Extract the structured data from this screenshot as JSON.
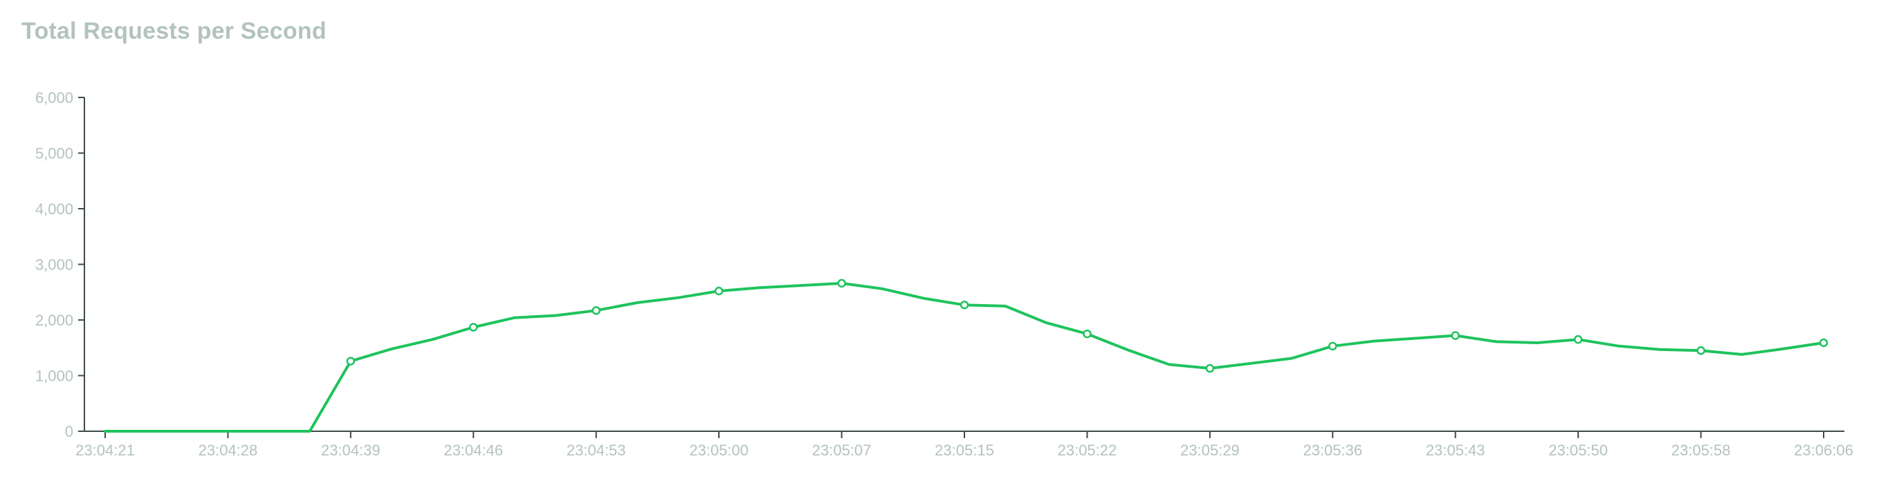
{
  "chart_data": {
    "type": "line",
    "title": "Total Requests per Second",
    "xlabel": "",
    "ylabel": "",
    "ylim": [
      0,
      6000
    ],
    "y_ticks": [
      "0",
      "1,000",
      "2,000",
      "3,000",
      "4,000",
      "5,000",
      "6,000"
    ],
    "x_ticks": [
      "23:04:21",
      "23:04:28",
      "23:04:39",
      "23:04:46",
      "23:04:53",
      "23:05:00",
      "23:05:07",
      "23:05:15",
      "23:05:22",
      "23:05:29",
      "23:05:36",
      "23:05:43",
      "23:05:50",
      "23:05:58",
      "23:06:06"
    ],
    "grid": false,
    "legend": "none",
    "colors": {
      "line": "#1ec35d",
      "axis": "#3d4a46",
      "text": "#b3c3bc",
      "title": "#b3c3bc"
    },
    "series": [
      {
        "values": [
          0,
          0,
          0,
          0,
          0,
          0,
          1260,
          1480,
          1650,
          1870,
          2040,
          2080,
          2170,
          2310,
          2400,
          2520,
          2580,
          2620,
          2660,
          2560,
          2390,
          2270,
          2250,
          1950,
          1750,
          1460,
          1200,
          1130,
          1220,
          1310,
          1530,
          1620,
          1670,
          1720,
          1610,
          1590,
          1650,
          1530,
          1470,
          1450,
          1380,
          1480,
          1590
        ],
        "markers_at": [
          6,
          9,
          12,
          15,
          18,
          21,
          24,
          27,
          30,
          33,
          36,
          39,
          42
        ]
      }
    ]
  }
}
